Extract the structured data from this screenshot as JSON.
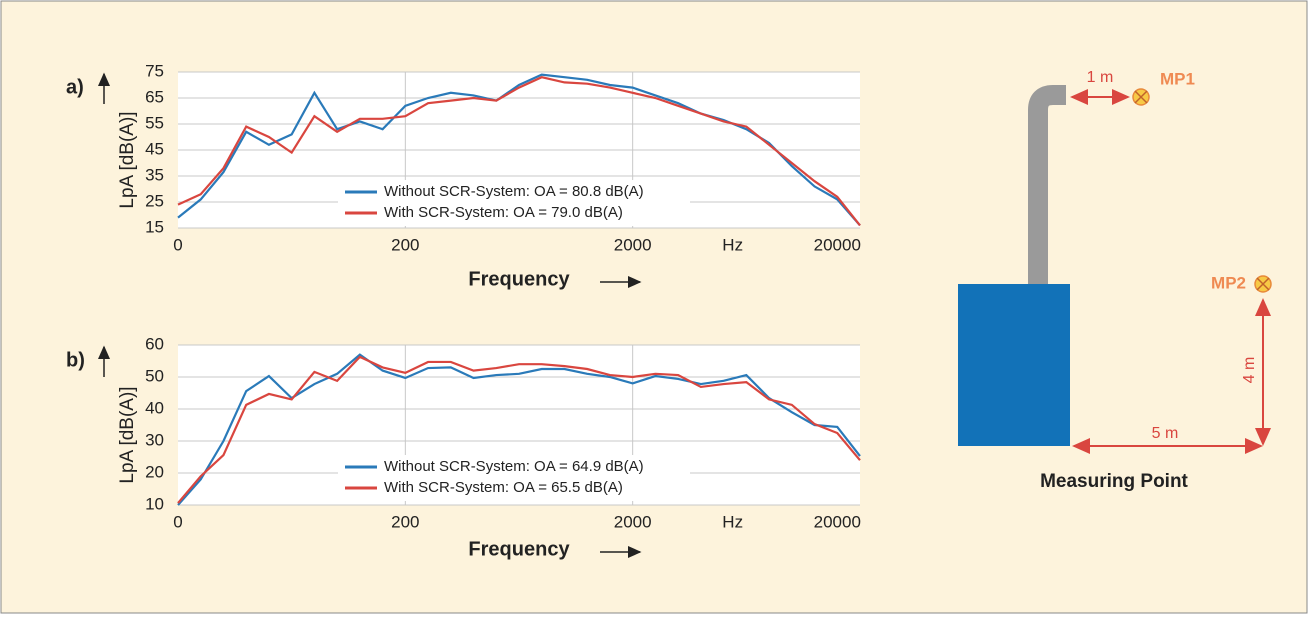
{
  "chart_data": [
    {
      "type": "line",
      "label": "a)",
      "y_label": "LpA [dB(A)]",
      "x_label": "Frequency",
      "x_unit": "Hz",
      "categories": [
        "0",
        null,
        null,
        null,
        null,
        null,
        null,
        null,
        null,
        null,
        "200",
        null,
        null,
        null,
        null,
        null,
        null,
        null,
        null,
        null,
        "2000",
        null,
        null,
        null,
        null,
        null,
        null,
        null,
        null,
        "20000",
        null
      ],
      "ylim": [
        15,
        75
      ],
      "yticks": [
        15,
        25,
        35,
        45,
        55,
        65,
        75
      ],
      "grid": true,
      "xgrid": true,
      "series": [
        {
          "name": "Without SCR-System: OA = 80.8 dB(A)",
          "color": "#2a7ab9",
          "values": [
            19,
            26,
            36.5,
            52,
            47,
            51,
            67,
            53,
            56,
            53,
            62,
            65,
            67,
            66,
            64,
            70,
            74,
            73,
            72,
            70,
            69,
            66,
            63,
            59,
            56.5,
            53,
            47.7,
            38.8,
            31,
            26,
            16
          ]
        },
        {
          "name": "With SCR-System: OA = 79.0 dB(A)",
          "color": "#d9463f",
          "values": [
            24,
            28,
            38,
            54,
            50,
            44,
            58,
            52,
            57,
            57,
            58,
            63,
            64,
            65,
            64,
            69,
            73,
            71,
            70.5,
            69,
            67,
            65,
            62,
            59,
            56,
            54,
            47,
            40,
            33,
            27,
            16
          ]
        }
      ]
    },
    {
      "type": "line",
      "label": "b)",
      "y_label": "LpA [dB(A)]",
      "x_label": "Frequency",
      "x_unit": "Hz",
      "categories": [
        "0",
        null,
        null,
        null,
        null,
        null,
        null,
        null,
        null,
        null,
        "200",
        null,
        null,
        null,
        null,
        null,
        null,
        null,
        null,
        null,
        "2000",
        null,
        null,
        null,
        null,
        null,
        null,
        null,
        null,
        "20000",
        null
      ],
      "ylim": [
        10,
        60
      ],
      "yticks": [
        10,
        20,
        30,
        40,
        50,
        60
      ],
      "grid": true,
      "xgrid": true,
      "series": [
        {
          "name": "Without SCR-System: OA = 64.9 dB(A)",
          "color": "#2a7ab9",
          "values": [
            10,
            18,
            30,
            45.6,
            50.3,
            43.4,
            47.8,
            51,
            57,
            52,
            49.7,
            52.8,
            53,
            49.7,
            50.6,
            51,
            52.5,
            52.5,
            51,
            50,
            48,
            50.3,
            49.4,
            47.8,
            48.8,
            50.6,
            43.4,
            39,
            35,
            34.4,
            25.3
          ]
        },
        {
          "name": "With SCR-System: OA = 65.5 dB(A)",
          "color": "#d9463f",
          "values": [
            10.6,
            19,
            25.6,
            41.3,
            44.7,
            43,
            51.6,
            48.8,
            56.3,
            53,
            51.3,
            54.7,
            54.7,
            52,
            52.8,
            54,
            54,
            53.4,
            52.5,
            50.6,
            50,
            51,
            50.6,
            46.9,
            47.8,
            48.4,
            43,
            41.3,
            35.3,
            32.5,
            24
          ]
        }
      ]
    }
  ],
  "diagram": {
    "mp1_label": "MP1",
    "mp1_distance": "1 m",
    "mp2_label": "MP2",
    "height_label": "4 m",
    "distance_label": "5 m",
    "caption": "Measuring Point"
  }
}
